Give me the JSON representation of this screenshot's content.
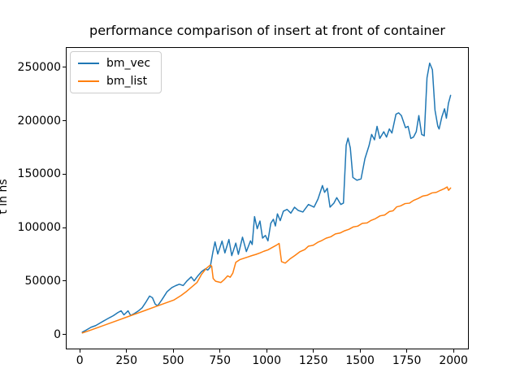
{
  "chart_data": {
    "type": "line",
    "title": "performance comparison of insert at front of container",
    "xlabel": "",
    "ylabel": "t in ns",
    "x_ticks": [
      0,
      250,
      500,
      750,
      1000,
      1250,
      1500,
      1750,
      2000
    ],
    "y_ticks": [
      0,
      50000,
      100000,
      150000,
      200000,
      250000
    ],
    "xlim": [
      -75,
      2082
    ],
    "ylim": [
      -13900,
      268800
    ],
    "grid": false,
    "legend_position": "upper left",
    "background_color": "#ffffff",
    "axis_color": "#000000",
    "legend_border_color": "#cccccc",
    "series": [
      {
        "name": "bm_vec",
        "color": "#1f77b4",
        "points": [
          [
            8,
            1500
          ],
          [
            30,
            3600
          ],
          [
            55,
            6200
          ],
          [
            80,
            7700
          ],
          [
            105,
            10300
          ],
          [
            130,
            12800
          ],
          [
            155,
            15200
          ],
          [
            175,
            17000
          ],
          [
            200,
            20000
          ],
          [
            217,
            21600
          ],
          [
            232,
            17800
          ],
          [
            254,
            21600
          ],
          [
            268,
            17200
          ],
          [
            290,
            19200
          ],
          [
            310,
            21500
          ],
          [
            330,
            24500
          ],
          [
            348,
            29200
          ],
          [
            370,
            35500
          ],
          [
            385,
            34000
          ],
          [
            400,
            28000
          ],
          [
            413,
            26300
          ],
          [
            435,
            31700
          ],
          [
            464,
            39500
          ],
          [
            490,
            43500
          ],
          [
            510,
            45200
          ],
          [
            530,
            46600
          ],
          [
            551,
            45400
          ],
          [
            570,
            49500
          ],
          [
            594,
            53500
          ],
          [
            610,
            49800
          ],
          [
            630,
            54500
          ],
          [
            650,
            58500
          ],
          [
            670,
            61000
          ],
          [
            683,
            60000
          ],
          [
            696,
            62500
          ],
          [
            711,
            77000
          ],
          [
            722,
            86400
          ],
          [
            737,
            75000
          ],
          [
            760,
            87200
          ],
          [
            775,
            76100
          ],
          [
            797,
            88700
          ],
          [
            812,
            73500
          ],
          [
            834,
            85300
          ],
          [
            848,
            74700
          ],
          [
            870,
            90800
          ],
          [
            891,
            77300
          ],
          [
            913,
            87400
          ],
          [
            922,
            84000
          ],
          [
            935,
            110200
          ],
          [
            949,
            98800
          ],
          [
            964,
            106000
          ],
          [
            978,
            90000
          ],
          [
            993,
            92500
          ],
          [
            1007,
            87400
          ],
          [
            1022,
            103900
          ],
          [
            1036,
            107700
          ],
          [
            1047,
            101400
          ],
          [
            1058,
            112800
          ],
          [
            1073,
            106400
          ],
          [
            1090,
            115300
          ],
          [
            1110,
            117000
          ],
          [
            1130,
            113500
          ],
          [
            1150,
            119000
          ],
          [
            1170,
            116000
          ],
          [
            1195,
            114500
          ],
          [
            1225,
            121600
          ],
          [
            1255,
            119100
          ],
          [
            1276,
            126700
          ],
          [
            1300,
            139400
          ],
          [
            1312,
            133000
          ],
          [
            1326,
            136800
          ],
          [
            1341,
            119100
          ],
          [
            1362,
            122900
          ],
          [
            1377,
            128000
          ],
          [
            1399,
            121600
          ],
          [
            1413,
            122900
          ],
          [
            1428,
            177400
          ],
          [
            1438,
            184000
          ],
          [
            1450,
            174800
          ],
          [
            1464,
            147000
          ],
          [
            1486,
            144400
          ],
          [
            1508,
            145700
          ],
          [
            1529,
            164700
          ],
          [
            1551,
            177000
          ],
          [
            1565,
            187500
          ],
          [
            1580,
            182400
          ],
          [
            1594,
            195100
          ],
          [
            1609,
            183700
          ],
          [
            1630,
            190000
          ],
          [
            1645,
            185000
          ],
          [
            1660,
            192600
          ],
          [
            1674,
            188800
          ],
          [
            1696,
            206500
          ],
          [
            1710,
            207800
          ],
          [
            1725,
            205200
          ],
          [
            1747,
            193800
          ],
          [
            1761,
            195100
          ],
          [
            1776,
            183700
          ],
          [
            1790,
            185000
          ],
          [
            1805,
            190000
          ],
          [
            1819,
            205200
          ],
          [
            1834,
            187500
          ],
          [
            1848,
            186200
          ],
          [
            1863,
            240700
          ],
          [
            1877,
            254500
          ],
          [
            1892,
            248300
          ],
          [
            1906,
            210300
          ],
          [
            1921,
            195100
          ],
          [
            1928,
            192600
          ],
          [
            1943,
            204000
          ],
          [
            1957,
            211600
          ],
          [
            1967,
            202700
          ],
          [
            1978,
            216600
          ],
          [
            1990,
            224200
          ]
        ]
      },
      {
        "name": "bm_list",
        "color": "#ff7f0e",
        "points": [
          [
            8,
            800
          ],
          [
            50,
            3300
          ],
          [
            100,
            6400
          ],
          [
            150,
            9600
          ],
          [
            200,
            12700
          ],
          [
            250,
            15900
          ],
          [
            300,
            19000
          ],
          [
            350,
            22200
          ],
          [
            400,
            25400
          ],
          [
            450,
            28600
          ],
          [
            500,
            31700
          ],
          [
            540,
            36000
          ],
          [
            570,
            40000
          ],
          [
            600,
            44500
          ],
          [
            625,
            48200
          ],
          [
            650,
            56000
          ],
          [
            675,
            61500
          ],
          [
            696,
            64600
          ],
          [
            704,
            63800
          ],
          [
            712,
            52000
          ],
          [
            725,
            49400
          ],
          [
            754,
            48200
          ],
          [
            770,
            50700
          ],
          [
            790,
            54500
          ],
          [
            804,
            53200
          ],
          [
            818,
            57000
          ],
          [
            834,
            67200
          ],
          [
            855,
            69700
          ],
          [
            877,
            71000
          ],
          [
            900,
            72300
          ],
          [
            920,
            73500
          ],
          [
            942,
            74600
          ],
          [
            964,
            76000
          ],
          [
            985,
            77600
          ],
          [
            1007,
            78900
          ],
          [
            1029,
            81100
          ],
          [
            1050,
            83100
          ],
          [
            1067,
            85000
          ],
          [
            1080,
            67800
          ],
          [
            1100,
            66500
          ],
          [
            1125,
            70300
          ],
          [
            1152,
            73600
          ],
          [
            1180,
            77300
          ],
          [
            1205,
            79200
          ],
          [
            1225,
            82400
          ],
          [
            1250,
            83200
          ],
          [
            1275,
            86000
          ],
          [
            1297,
            87700
          ],
          [
            1320,
            89900
          ],
          [
            1345,
            91200
          ],
          [
            1370,
            93900
          ],
          [
            1395,
            94800
          ],
          [
            1420,
            96900
          ],
          [
            1442,
            98200
          ],
          [
            1465,
            100400
          ],
          [
            1490,
            101200
          ],
          [
            1515,
            103900
          ],
          [
            1540,
            104300
          ],
          [
            1560,
            106500
          ],
          [
            1585,
            108200
          ],
          [
            1610,
            110900
          ],
          [
            1635,
            111700
          ],
          [
            1660,
            114900
          ],
          [
            1680,
            115700
          ],
          [
            1700,
            119400
          ],
          [
            1720,
            120200
          ],
          [
            1745,
            122400
          ],
          [
            1768,
            122800
          ],
          [
            1790,
            125400
          ],
          [
            1815,
            127200
          ],
          [
            1841,
            129600
          ],
          [
            1865,
            130300
          ],
          [
            1890,
            132500
          ],
          [
            1913,
            133000
          ],
          [
            1935,
            134900
          ],
          [
            1957,
            136600
          ],
          [
            1971,
            138100
          ],
          [
            1979,
            134900
          ],
          [
            1990,
            137100
          ]
        ]
      }
    ]
  }
}
